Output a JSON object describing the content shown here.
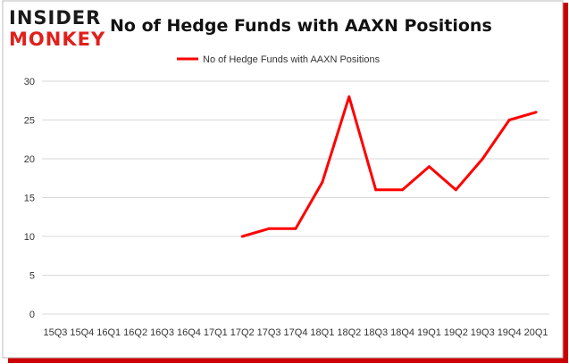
{
  "brand": {
    "line1": "INSIDER",
    "line2": "MONKEY"
  },
  "chart_data": {
    "type": "line",
    "title": "No of Hedge Funds with AAXN Positions",
    "categories": [
      "15Q3",
      "15Q4",
      "16Q1",
      "16Q2",
      "16Q3",
      "16Q4",
      "17Q1",
      "17Q2",
      "17Q3",
      "17Q4",
      "18Q1",
      "18Q2",
      "18Q3",
      "18Q4",
      "19Q1",
      "19Q2",
      "19Q3",
      "19Q4",
      "20Q1"
    ],
    "series": [
      {
        "name": "No of Hedge Funds with AAXN Positions",
        "values": [
          null,
          null,
          null,
          null,
          null,
          null,
          null,
          10,
          11,
          11,
          17,
          28,
          16,
          16,
          19,
          16,
          20,
          25,
          26
        ]
      }
    ],
    "ylim": [
      0,
      30
    ],
    "yticks": [
      0,
      5,
      10,
      15,
      20,
      25,
      30
    ],
    "grid": true,
    "legend": "top",
    "colors": {
      "line": "#ff0000",
      "grid": "#d9d9d9",
      "border": "#cc0000",
      "logo_dark": "#1a1a1a",
      "logo_red": "#e0201b"
    }
  }
}
